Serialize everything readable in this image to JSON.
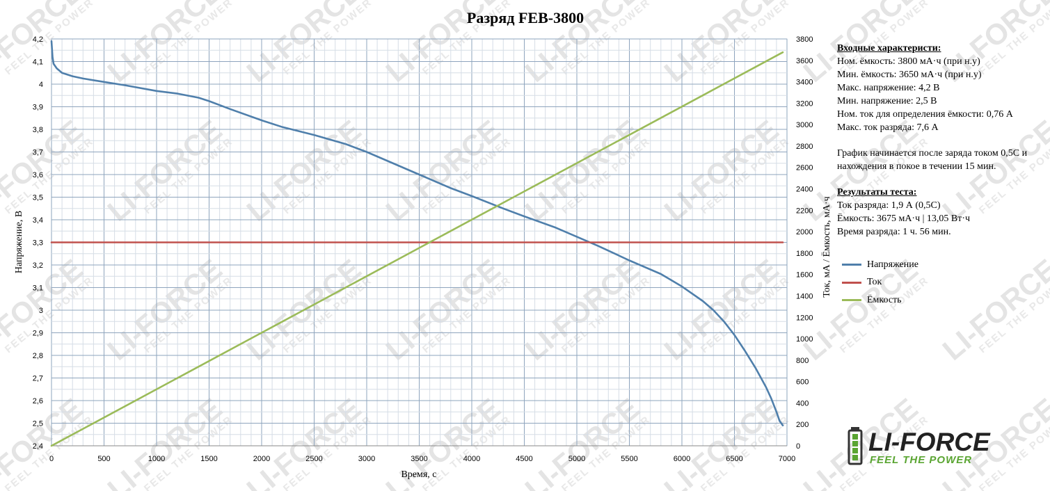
{
  "colors": {
    "voltage": "#4f7fab",
    "current": "#c0504d",
    "capacity": "#9bbb59",
    "grid_major": "#8ea4bd",
    "grid_minor": "#d6dde6",
    "logo_green": "#5aa532"
  },
  "watermark": {
    "main": "LI-FORCE",
    "sub": "FEEL THE POWER"
  },
  "info": {
    "input_header": "Входные характеристи:",
    "input_lines": [
      "Ном. ёмкость: 3800 мА·ч (при н.у)",
      "Мин. ёмкость: 3650 мА·ч (при н.у)",
      "Макс. напряжение: 4,2 В",
      "Мин. напряжение: 2,5 В",
      "Ном. ток для определения ёмкости: 0,76 А",
      "Макс. ток разряда: 7,6 А"
    ],
    "note": "График начинается после заряда током 0,5С и нахождения в покое в течении 15 мин.",
    "results_header": "Результаты теста:",
    "results_lines": [
      "Ток разряда: 1,9 А (0,5С)",
      "Ёмкость: 3675 мА·ч | 13,05 Вт·ч",
      "Время разряда: 1 ч. 56 мин."
    ]
  },
  "logo": {
    "brand": "LI-FORCE",
    "tagline": "FEEL THE POWER"
  },
  "chart_data": {
    "type": "line",
    "title": "Разряд FEB-3800",
    "xlabel": "Время, с",
    "ylabel": "Напряжение, В",
    "y2label": "Ток, мА / Ёмкость, мА·ч",
    "xlim": [
      0,
      7000
    ],
    "ylim": [
      2.4,
      4.2
    ],
    "y2lim": [
      0,
      3800
    ],
    "x_ticks": [
      "0",
      "500",
      "1000",
      "1500",
      "2000",
      "2500",
      "3000",
      "3500",
      "4000",
      "4500",
      "5000",
      "5500",
      "6000",
      "6500",
      "7000"
    ],
    "y_ticks": [
      "2,4",
      "2,5",
      "2,6",
      "2,7",
      "2,8",
      "2,9",
      "3",
      "3,1",
      "3,2",
      "3,3",
      "3,4",
      "3,5",
      "3,6",
      "3,7",
      "3,8",
      "3,9",
      "4",
      "4,1",
      "4,2"
    ],
    "y2_ticks": [
      "0",
      "200",
      "400",
      "600",
      "800",
      "1000",
      "1200",
      "1400",
      "1600",
      "1800",
      "2000",
      "2200",
      "2400",
      "2600",
      "2800",
      "3000",
      "3200",
      "3400",
      "3600",
      "3800"
    ],
    "grid": true,
    "legend_position": "right",
    "series": [
      {
        "name": "Напряжение",
        "axis": "left",
        "x": [
          0,
          10,
          20,
          50,
          100,
          200,
          300,
          500,
          700,
          1000,
          1200,
          1400,
          1500,
          1700,
          2000,
          2200,
          2500,
          2800,
          3000,
          3200,
          3500,
          3800,
          4000,
          4300,
          4500,
          4800,
          5000,
          5200,
          5500,
          5800,
          6000,
          6200,
          6300,
          6400,
          6500,
          6600,
          6700,
          6800,
          6850,
          6900,
          6930,
          6960
        ],
        "values": [
          4.19,
          4.12,
          4.09,
          4.07,
          4.05,
          4.035,
          4.025,
          4.01,
          3.995,
          3.97,
          3.958,
          3.94,
          3.925,
          3.89,
          3.84,
          3.81,
          3.775,
          3.735,
          3.7,
          3.66,
          3.6,
          3.54,
          3.505,
          3.45,
          3.415,
          3.365,
          3.325,
          3.285,
          3.22,
          3.16,
          3.105,
          3.04,
          3.0,
          2.95,
          2.89,
          2.82,
          2.745,
          2.66,
          2.61,
          2.55,
          2.51,
          2.49
        ]
      },
      {
        "name": "Ток",
        "axis": "right",
        "x": [
          0,
          6960
        ],
        "values": [
          1900,
          1900
        ]
      },
      {
        "name": "Ёмкость",
        "axis": "right",
        "x": [
          0,
          6960
        ],
        "values": [
          0,
          3675
        ]
      }
    ]
  }
}
